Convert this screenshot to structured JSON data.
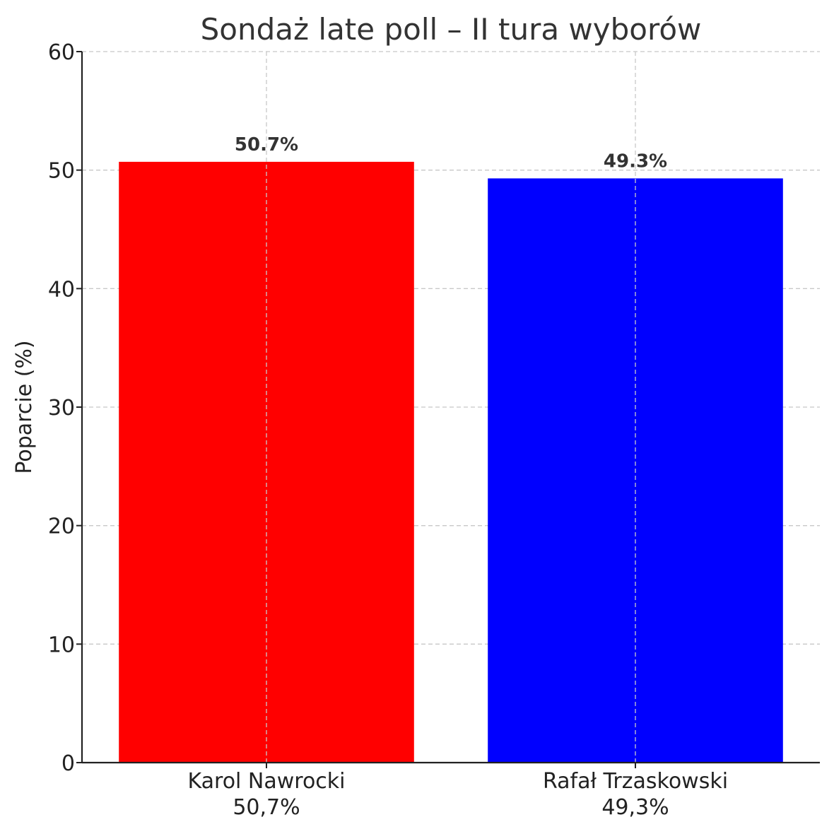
{
  "chart_data": {
    "type": "bar",
    "title": "Sondaż late poll – II tura wyborów",
    "xlabel": "",
    "ylabel": "Poparcie (%)",
    "ylim": [
      0,
      60
    ],
    "yticks": [
      0,
      10,
      20,
      30,
      40,
      50,
      60
    ],
    "grid": true,
    "categories": [
      {
        "name": "Karol Nawrocki",
        "sublabel": "50,7%"
      },
      {
        "name": "Rafał Trzaskowski",
        "sublabel": "49,3%"
      }
    ],
    "values": [
      50.7,
      49.3
    ],
    "data_labels": [
      "50.7%",
      "49.3%"
    ],
    "colors": [
      "#ff0000",
      "#0000ff"
    ]
  }
}
